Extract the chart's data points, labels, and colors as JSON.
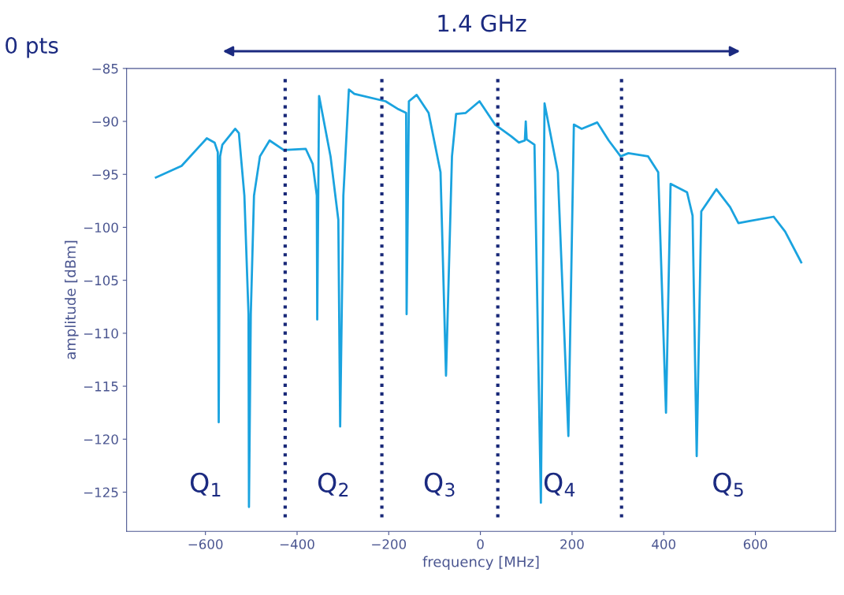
{
  "chart_data": {
    "type": "line",
    "xlabel": "frequency [MHz]",
    "ylabel": "amplitude [dBm]",
    "x": [
      -708,
      -652,
      -597,
      -580,
      -573,
      -571,
      -568,
      -563,
      -535,
      -527,
      -515,
      -506,
      -505,
      -501,
      -494,
      -481,
      -460,
      -429,
      -381,
      -366,
      -357,
      -356,
      -352,
      -327,
      -310,
      -306,
      -299,
      -287,
      -275,
      -207,
      -181,
      -162,
      -161,
      -156,
      -139,
      -113,
      -87,
      -75,
      -62,
      -53,
      -32,
      -2,
      32,
      67,
      84,
      97,
      99,
      101,
      118,
      132,
      140,
      169,
      192,
      204,
      221,
      255,
      280,
      306,
      323,
      366,
      388,
      405,
      415,
      451,
      463,
      472,
      482,
      515,
      545,
      563,
      588,
      640,
      665,
      700
    ],
    "series": [
      {
        "color": "#1aa3df",
        "values": [
          -95.3,
          -94.2,
          -91.6,
          -92.0,
          -92.9,
          -118.4,
          -93.3,
          -92.2,
          -90.7,
          -91.1,
          -97.0,
          -108.2,
          -126.4,
          -108.2,
          -97.0,
          -93.3,
          -91.8,
          -92.7,
          -92.6,
          -94.0,
          -97.0,
          -108.7,
          -87.6,
          -93.3,
          -99.3,
          -118.8,
          -97.0,
          -87.0,
          -87.4,
          -88.1,
          -88.8,
          -89.2,
          -108.2,
          -88.1,
          -87.5,
          -89.2,
          -94.8,
          -114.0,
          -93.3,
          -89.3,
          -89.2,
          -88.1,
          -90.3,
          -91.4,
          -92.0,
          -91.8,
          -90.0,
          -91.7,
          -92.2,
          -126.0,
          -88.3,
          -94.8,
          -119.7,
          -90.3,
          -90.7,
          -90.1,
          -91.8,
          -93.3,
          -93.0,
          -93.3,
          -94.8,
          -117.5,
          -95.9,
          -96.7,
          -98.9,
          -121.6,
          -98.5,
          -96.4,
          -98.1,
          -99.6,
          -99.4,
          -99.0,
          -100.4,
          -103.3
        ]
      }
    ],
    "xlim": [
      -772,
      775
    ],
    "ylim": [
      -128.7,
      -85
    ],
    "xticks": [
      -600,
      -400,
      -200,
      0,
      200,
      400,
      600
    ],
    "yticks": [
      -85,
      -90,
      -95,
      -100,
      -105,
      -110,
      -115,
      -120,
      -125
    ],
    "grid": false,
    "legend": false,
    "marker": "none",
    "line_style": "solid",
    "ref_lines": [
      {
        "axis": "x",
        "value": -426,
        "color": "#182878",
        "line_style": "dotted"
      },
      {
        "axis": "x",
        "value": -215,
        "color": "#182878",
        "line_style": "dotted"
      },
      {
        "axis": "x",
        "value": 38,
        "color": "#182878",
        "line_style": "dotted"
      },
      {
        "axis": "x",
        "value": 308,
        "color": "#182878",
        "line_style": "dotted"
      }
    ],
    "annotations": [
      "Q$_{1}$",
      "Q$_{2}$",
      "Q$_{3}$",
      "Q$_{4}$",
      "Q$_{5}$",
      "1.4 GHz",
      "0 pts"
    ]
  }
}
